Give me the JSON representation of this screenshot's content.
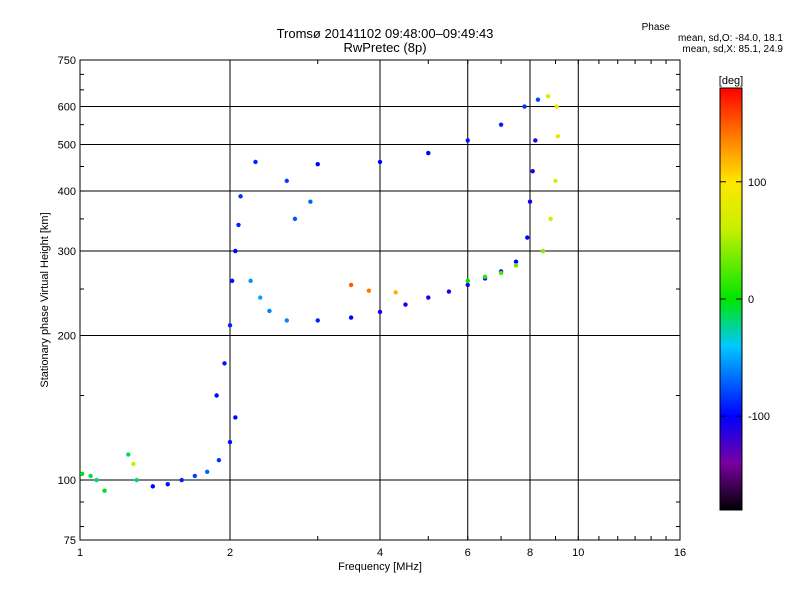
{
  "chart_data": {
    "type": "scatter",
    "title": "Tromsø 20141102 09:48:00–09:49:43",
    "subtitle": "RwPretec (8p)",
    "xlabel": "Frequency [MHz]",
    "ylabel": "Stationary phase Virtual Height [km]",
    "x_scale": "log",
    "y_scale": "log",
    "xlim": [
      1,
      16
    ],
    "ylim": [
      75,
      750
    ],
    "x_ticks": [
      1,
      2,
      4,
      6,
      8,
      10,
      16
    ],
    "x_tick_labels": [
      "1",
      "2",
      "4",
      "6",
      "8",
      "10",
      "16"
    ],
    "y_ticks": [
      75,
      100,
      200,
      300,
      400,
      500,
      600,
      750
    ],
    "y_tick_labels": [
      "75",
      "100",
      "200",
      "300",
      "400",
      "500",
      "600",
      "750"
    ],
    "grid": true,
    "phase_stats": {
      "header": "Phase",
      "line_o": "mean, sd,O: -84.0, 18.1",
      "line_x": "mean, sd,X:  85.1, 24.9"
    },
    "colorbar": {
      "label": "[deg]",
      "range": [
        -180,
        180
      ],
      "ticks": [
        100,
        0,
        -100
      ],
      "tick_labels": [
        "100",
        "0",
        "-100"
      ]
    },
    "series": [
      {
        "name": "trace",
        "points": [
          [
            1.01,
            103,
            -5
          ],
          [
            1.05,
            102,
            -10
          ],
          [
            1.08,
            100,
            -20
          ],
          [
            1.12,
            95,
            -5
          ],
          [
            1.25,
            113,
            -15
          ],
          [
            1.3,
            100,
            -20
          ],
          [
            1.28,
            108,
            60
          ],
          [
            1.4,
            97,
            -100
          ],
          [
            1.5,
            98,
            -95
          ],
          [
            1.6,
            100,
            -90
          ],
          [
            1.7,
            102,
            -80
          ],
          [
            1.8,
            104,
            -70
          ],
          [
            1.9,
            110,
            -85
          ],
          [
            2.0,
            120,
            -95
          ],
          [
            2.05,
            135,
            -100
          ],
          [
            1.88,
            150,
            -100
          ],
          [
            1.95,
            175,
            -95
          ],
          [
            2.0,
            210,
            -90
          ],
          [
            2.02,
            260,
            -95
          ],
          [
            2.05,
            300,
            -100
          ],
          [
            2.08,
            340,
            -90
          ],
          [
            2.1,
            390,
            -85
          ],
          [
            2.2,
            260,
            -55
          ],
          [
            2.3,
            240,
            -50
          ],
          [
            2.4,
            225,
            -60
          ],
          [
            2.6,
            215,
            -60
          ],
          [
            3.0,
            215,
            -90
          ],
          [
            3.5,
            218,
            -100
          ],
          [
            4.0,
            224,
            -105
          ],
          [
            4.5,
            232,
            -105
          ],
          [
            5.0,
            240,
            -110
          ],
          [
            5.5,
            247,
            -110
          ],
          [
            6.0,
            255,
            -110
          ],
          [
            6.5,
            263,
            -110
          ],
          [
            7.0,
            272,
            -105
          ],
          [
            7.5,
            285,
            -100
          ],
          [
            7.9,
            320,
            -100
          ],
          [
            8.0,
            380,
            -105
          ],
          [
            8.1,
            440,
            -110
          ],
          [
            8.2,
            510,
            -115
          ],
          [
            6.0,
            260,
            0
          ],
          [
            6.5,
            265,
            10
          ],
          [
            7.0,
            270,
            20
          ],
          [
            7.5,
            280,
            30
          ],
          [
            8.5,
            300,
            40
          ],
          [
            8.8,
            350,
            60
          ],
          [
            9.0,
            420,
            70
          ],
          [
            9.1,
            520,
            80
          ],
          [
            9.05,
            600,
            85
          ],
          [
            3.5,
            255,
            150
          ],
          [
            3.8,
            248,
            140
          ],
          [
            4.3,
            246,
            120
          ],
          [
            2.25,
            460,
            -90
          ],
          [
            2.6,
            420,
            -80
          ],
          [
            2.9,
            380,
            -70
          ],
          [
            2.7,
            350,
            -75
          ],
          [
            3.0,
            455,
            -100
          ],
          [
            4.0,
            460,
            -100
          ],
          [
            5.0,
            480,
            -100
          ],
          [
            6.0,
            510,
            -95
          ],
          [
            7.0,
            550,
            -90
          ],
          [
            7.8,
            600,
            -85
          ],
          [
            8.3,
            620,
            -80
          ],
          [
            8.7,
            630,
            70
          ]
        ]
      }
    ]
  }
}
